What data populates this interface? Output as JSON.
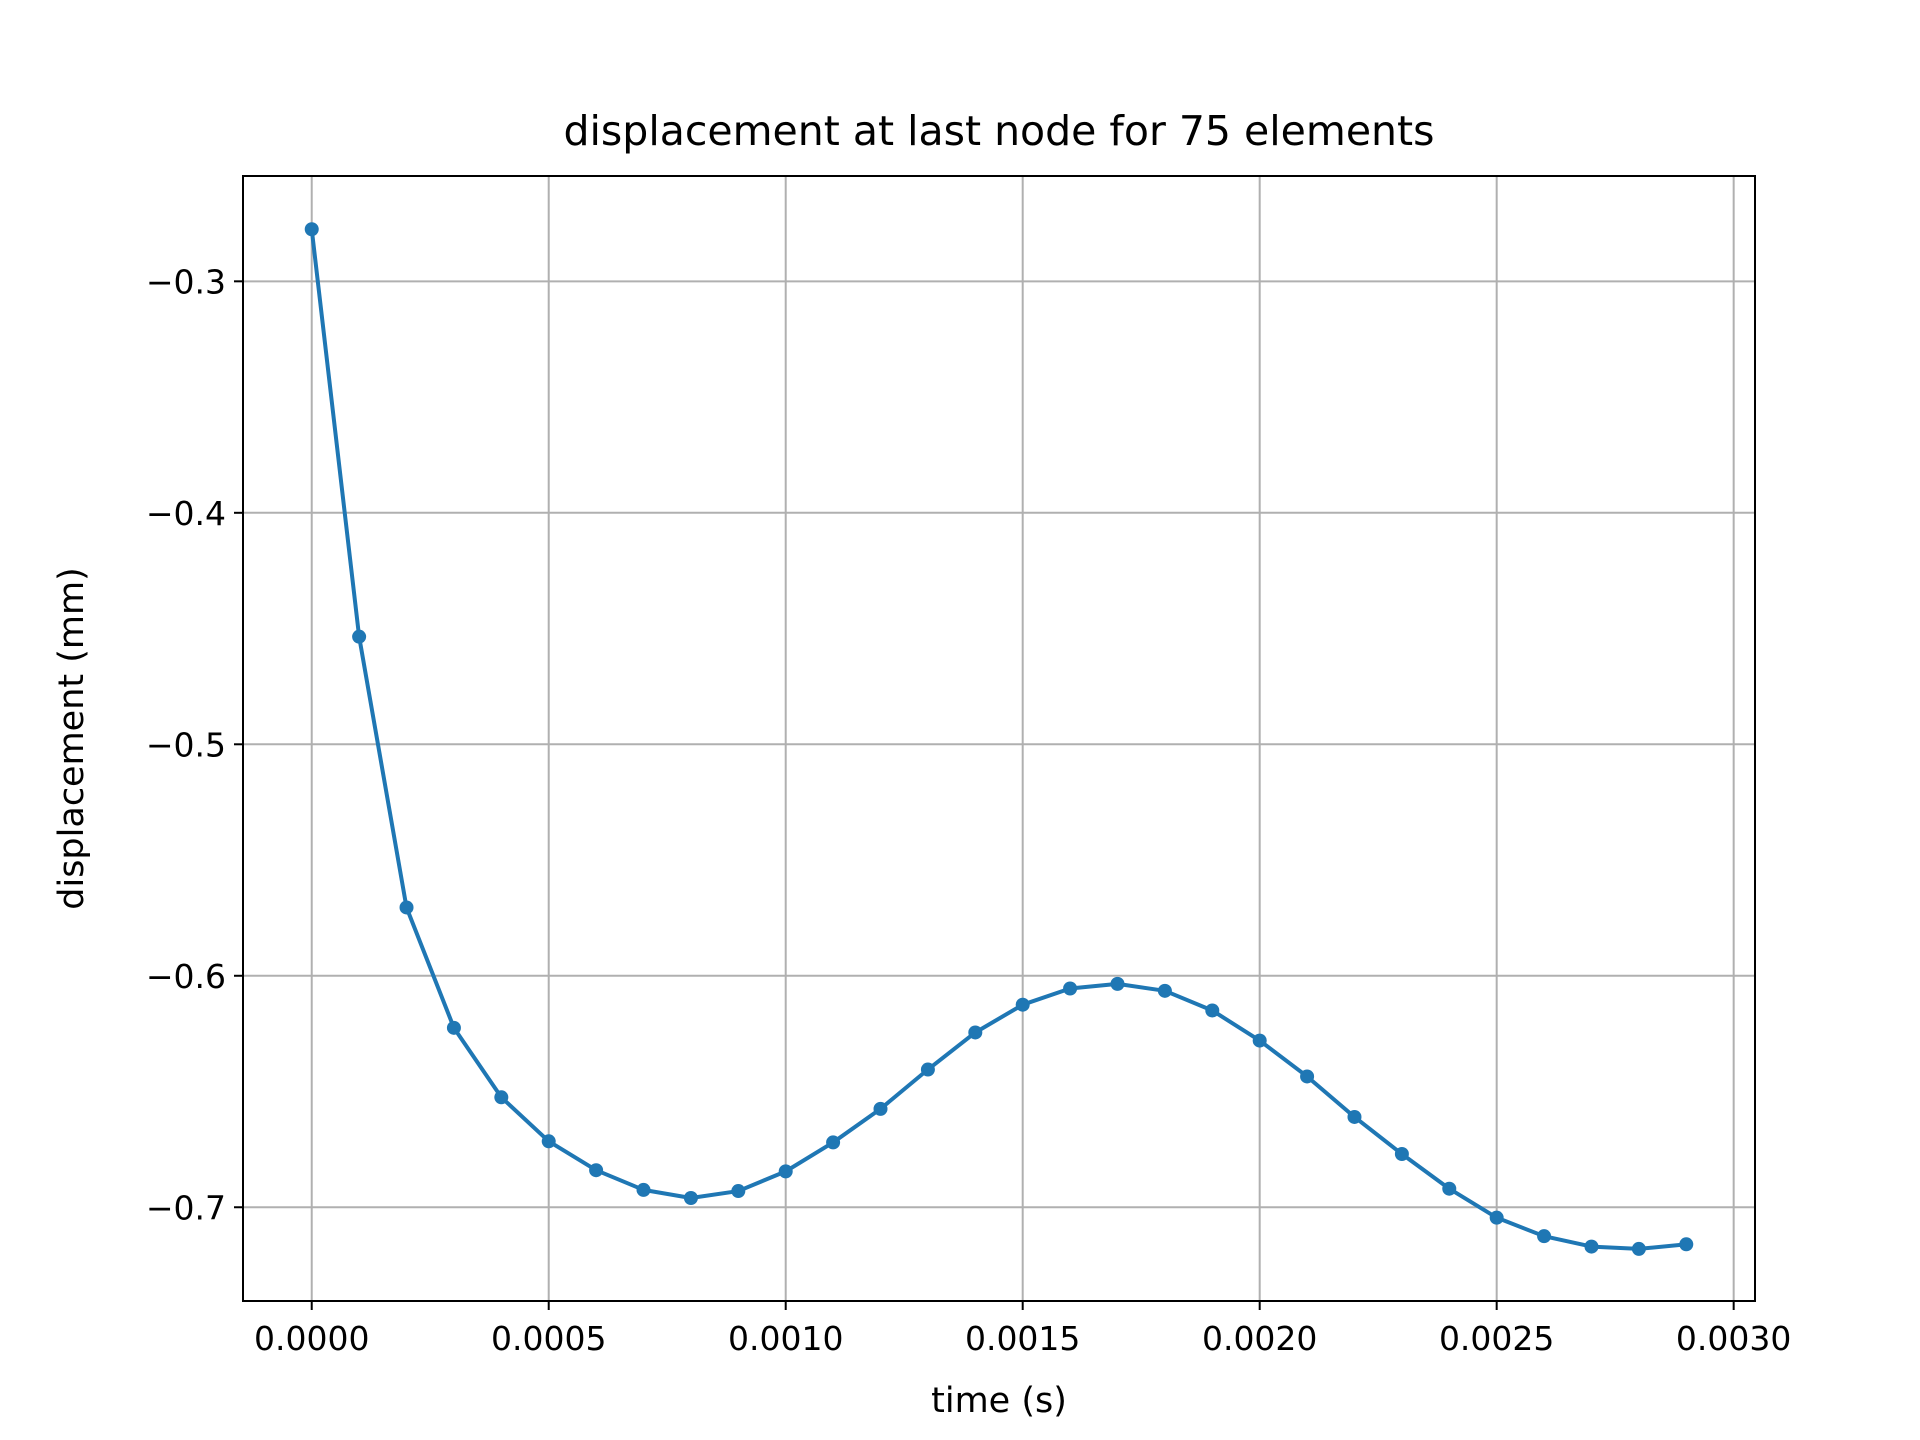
{
  "chart_data": {
    "type": "line",
    "title": "displacement at last node for 75 elements",
    "xlabel": "time (s)",
    "ylabel": "displacement (mm)",
    "xlim": [
      -0.000145,
      0.003045
    ],
    "ylim": [
      -0.7405,
      -0.2545
    ],
    "xticks": [
      0.0,
      0.0005,
      0.001,
      0.0015,
      0.002,
      0.0025,
      0.003
    ],
    "xtick_labels": [
      "0.0000",
      "0.0005",
      "0.0010",
      "0.0015",
      "0.0020",
      "0.0025",
      "0.0030"
    ],
    "yticks": [
      -0.7,
      -0.6,
      -0.5,
      -0.4,
      -0.3
    ],
    "ytick_labels": [
      "−0.7",
      "−0.6",
      "−0.5",
      "−0.4",
      "−0.3"
    ],
    "grid": true,
    "colors": {
      "line": "#1f77b4",
      "grid": "#b0b0b0",
      "axes": "#000000"
    },
    "x": [
      0.0,
      0.0001,
      0.0002,
      0.0003,
      0.0004,
      0.0005,
      0.0006,
      0.0007,
      0.0008,
      0.0009,
      0.001,
      0.0011,
      0.0012,
      0.0013,
      0.0014,
      0.0015,
      0.0016,
      0.0017,
      0.0018,
      0.0019,
      0.002,
      0.0021,
      0.0022,
      0.0023,
      0.0024,
      0.0025,
      0.0026,
      0.0027,
      0.0028,
      0.0029
    ],
    "series": [
      {
        "values": [
          -0.2775,
          -0.4535,
          -0.5705,
          -0.6225,
          -0.6525,
          -0.6715,
          -0.684,
          -0.6925,
          -0.696,
          -0.693,
          -0.6845,
          -0.672,
          -0.6575,
          -0.6405,
          -0.6245,
          -0.6125,
          -0.6055,
          -0.6035,
          -0.6065,
          -0.615,
          -0.628,
          -0.6435,
          -0.661,
          -0.677,
          -0.692,
          -0.7045,
          -0.7125,
          -0.717,
          -0.718,
          -0.716
        ]
      }
    ]
  }
}
